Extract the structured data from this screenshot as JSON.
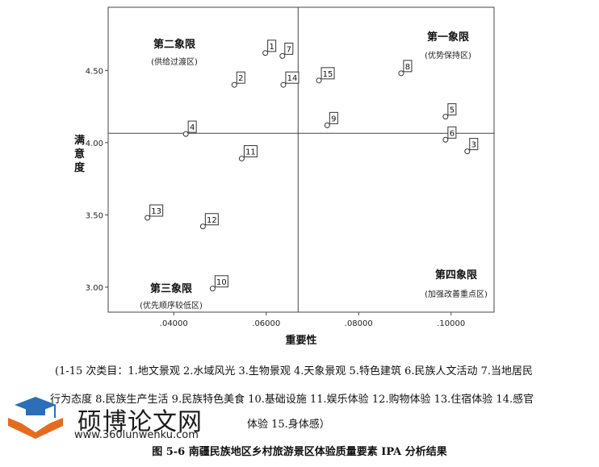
{
  "chart_data": {
    "type": "scatter",
    "xlabel": "重要性",
    "ylabel": "满意度",
    "xlim": [
      0.0258,
      0.1093
    ],
    "ylim": [
      2.827,
      4.937
    ],
    "x_ticks": [
      ".04000",
      ".06000",
      ".08000",
      ".10000"
    ],
    "y_ticks": [
      "3.00",
      "3.50",
      "4.00",
      "4.50"
    ],
    "x_tick_values": [
      0.04,
      0.06,
      0.08,
      0.1
    ],
    "y_tick_values": [
      3.0,
      3.5,
      4.0,
      4.5
    ],
    "ref_x": 0.0669,
    "ref_y": 4.065,
    "quadrants": [
      {
        "title": "第一象限",
        "subtitle": "(优势保持区)"
      },
      {
        "title": "第二象限",
        "subtitle": "(供给过渡区)"
      },
      {
        "title": "第三象限",
        "subtitle": "(优先顺序较低区)"
      },
      {
        "title": "第四象限",
        "subtitle": "(加强改善重点区)"
      }
    ],
    "points": [
      {
        "label": "1",
        "x": 0.0598,
        "y": 4.62
      },
      {
        "label": "2",
        "x": 0.0531,
        "y": 4.4
      },
      {
        "label": "3",
        "x": 0.1035,
        "y": 3.94
      },
      {
        "label": "4",
        "x": 0.0426,
        "y": 4.06
      },
      {
        "label": "5",
        "x": 0.0988,
        "y": 4.18
      },
      {
        "label": "6",
        "x": 0.0988,
        "y": 4.02
      },
      {
        "label": "7",
        "x": 0.0635,
        "y": 4.6
      },
      {
        "label": "8",
        "x": 0.0892,
        "y": 4.48
      },
      {
        "label": "9",
        "x": 0.0732,
        "y": 4.12
      },
      {
        "label": "10",
        "x": 0.0484,
        "y": 2.99
      },
      {
        "label": "11",
        "x": 0.0547,
        "y": 3.89
      },
      {
        "label": "12",
        "x": 0.0463,
        "y": 3.42
      },
      {
        "label": "13",
        "x": 0.0343,
        "y": 3.48
      },
      {
        "label": "14",
        "x": 0.0637,
        "y": 4.4
      },
      {
        "label": "15",
        "x": 0.0714,
        "y": 4.43
      }
    ]
  },
  "notes": {
    "line1": "(1-15 次类目：1.地文景观  2.水域风光  3.生物景观  4.天象景观  5.特色建筑  6.民族人文活动  7.当地居民",
    "line2": "行为态度  8.民族生产生活  9.民族特色美食  10.基础设施  11.娱乐体验  12.购物体验  13.住宿体验  14.感官",
    "line3": "体验  15.身体感）"
  },
  "caption": "图 5-6    南疆民族地区乡村旅游景区体验质量要素 IPA 分析结果",
  "watermark": {
    "text": "硕博论文网",
    "url": "www.360lunwenku.com",
    "logo_icon": "graduation-cap-icon",
    "colors": {
      "cap": "#2a6fb8",
      "book": "#e56c1f"
    }
  }
}
